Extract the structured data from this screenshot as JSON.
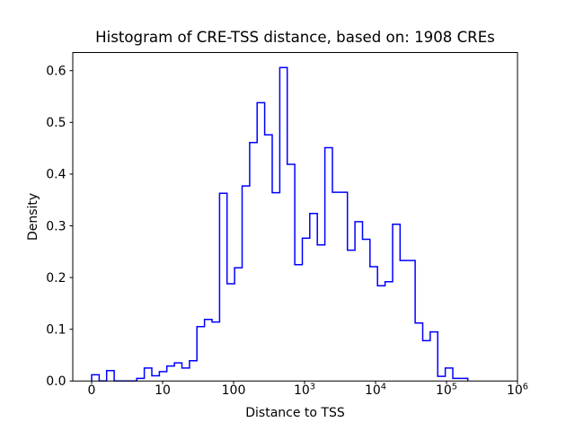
{
  "figure": {
    "title": "Histogram of CRE-TSS distance, based on: 1908 CREs",
    "xlabel": "Distance to TSS",
    "ylabel": "Density"
  },
  "chart_data": {
    "type": "bar",
    "subtype": "step-histogram",
    "title": "Histogram of CRE-TSS distance, based on: 1908 CREs",
    "xlabel": "Distance to TSS",
    "ylabel": "Density",
    "n_samples": 1908,
    "line_color": "#0000ff",
    "x_axis_note": "axis position t = log10(distance+1); tick labels show raw distance",
    "bin_start_t": 0.0,
    "bin_width_t": 0.106,
    "densities": [
      0.012,
      0,
      0.02,
      0,
      0,
      0,
      0.005,
      0.025,
      0.01,
      0.018,
      0.029,
      0.035,
      0.025,
      0.039,
      0.105,
      0.119,
      0.114,
      0.363,
      0.188,
      0.219,
      0.377,
      0.461,
      0.538,
      0.476,
      0.364,
      0.606,
      0.419,
      0.225,
      0.276,
      0.324,
      0.263,
      0.451,
      0.365,
      0.365,
      0.253,
      0.308,
      0.274,
      0.221,
      0.184,
      0.192,
      0.303,
      0.233,
      0.233,
      0.112,
      0.078,
      0.095,
      0.009,
      0.025,
      0.005,
      0.005
    ],
    "x_ticks": [
      {
        "t": 0,
        "label": "0"
      },
      {
        "t": 1,
        "label": "10"
      },
      {
        "t": 2,
        "label": "100"
      },
      {
        "t": 3,
        "label": "10^3"
      },
      {
        "t": 4,
        "label": "10^4"
      },
      {
        "t": 5,
        "label": "10^5"
      },
      {
        "t": 6,
        "label": "10^6"
      }
    ],
    "y_ticks": [
      0.0,
      0.1,
      0.2,
      0.3,
      0.4,
      0.5,
      0.6
    ],
    "y_tick_format": "0.0",
    "xlim_t": [
      -0.266,
      6.0
    ],
    "ylim": [
      0.0,
      0.635
    ],
    "grid": false,
    "legend": "none"
  }
}
